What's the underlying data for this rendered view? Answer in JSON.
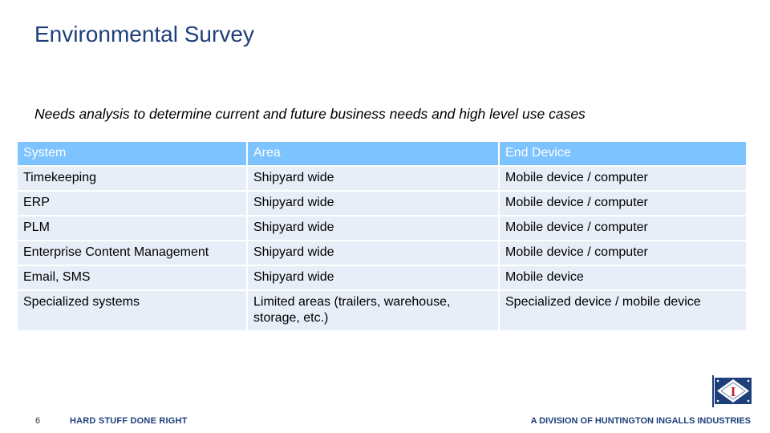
{
  "slide": {
    "title": "Environmental Survey",
    "subtitle": "Needs analysis to determine current and future business needs and high level use cases"
  },
  "table": {
    "headers": [
      "System",
      "Area",
      "End Device"
    ],
    "rows": [
      [
        "Timekeeping",
        "Shipyard wide",
        "Mobile device / computer"
      ],
      [
        "ERP",
        "Shipyard wide",
        "Mobile device / computer"
      ],
      [
        "PLM",
        "Shipyard wide",
        "Mobile device / computer"
      ],
      [
        "Enterprise Content Management",
        "Shipyard wide",
        "Mobile device / computer"
      ],
      [
        "Email, SMS",
        "Shipyard wide",
        "Mobile device"
      ],
      [
        "Specialized systems",
        "Limited areas (trailers, warehouse, storage, etc.)",
        "Specialized device / mobile device"
      ]
    ]
  },
  "footer": {
    "page_number": "6",
    "tagline": "HARD STUFF DONE RIGHT",
    "division": "A DIVISION OF HUNTINGTON INGALLS INDUSTRIES"
  },
  "logo": {
    "icon": "company-flag-logo-icon",
    "letter": "I",
    "colors": {
      "field": "#1f3f7a",
      "diamond": "#ffffff",
      "letter": "#c8202f"
    }
  },
  "colors": {
    "title": "#1f3f7a",
    "header_bg": "#7cc3ff",
    "row_bg": "#e7eef8"
  }
}
